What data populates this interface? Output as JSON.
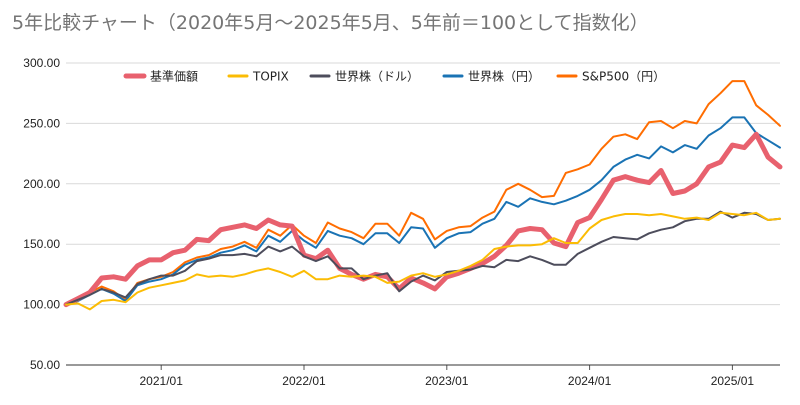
{
  "chart_data": {
    "type": "line",
    "title": "5年比較チャート（2020年5月〜2025年5月、5年前＝100として指数化）",
    "xlabel": "",
    "ylabel": "",
    "ylim": [
      50,
      300
    ],
    "yticks": [
      "50.00",
      "100.00",
      "150.00",
      "200.00",
      "250.00",
      "300.00"
    ],
    "xticks": [
      {
        "label": "2021/01",
        "date": "2021-01"
      },
      {
        "label": "2022/01",
        "date": "2022-01"
      },
      {
        "label": "2023/01",
        "date": "2023-01"
      },
      {
        "label": "2024/01",
        "date": "2024-01"
      },
      {
        "label": "2025/01",
        "date": "2025-01"
      }
    ],
    "grid": true,
    "legend_position": "top",
    "x": [
      "2020-05",
      "2020-06",
      "2020-07",
      "2020-08",
      "2020-09",
      "2020-10",
      "2020-11",
      "2020-12",
      "2021-01",
      "2021-02",
      "2021-03",
      "2021-04",
      "2021-05",
      "2021-06",
      "2021-07",
      "2021-08",
      "2021-09",
      "2021-10",
      "2021-11",
      "2021-12",
      "2022-01",
      "2022-02",
      "2022-03",
      "2022-04",
      "2022-05",
      "2022-06",
      "2022-07",
      "2022-08",
      "2022-09",
      "2022-10",
      "2022-11",
      "2022-12",
      "2023-01",
      "2023-02",
      "2023-03",
      "2023-04",
      "2023-05",
      "2023-06",
      "2023-07",
      "2023-08",
      "2023-09",
      "2023-10",
      "2023-11",
      "2023-12",
      "2024-01",
      "2024-02",
      "2024-03",
      "2024-04",
      "2024-05",
      "2024-06",
      "2024-07",
      "2024-08",
      "2024-09",
      "2024-10",
      "2024-11",
      "2024-12",
      "2025-01",
      "2025-02",
      "2025-03",
      "2025-04",
      "2025-05"
    ],
    "series": [
      {
        "name": "S&P500（円）",
        "color": "#ff6d01",
        "width": 2,
        "values": [
          100,
          104,
          110,
          115,
          111,
          104,
          118,
          121,
          123,
          127,
          135,
          139,
          141,
          146,
          148,
          152,
          147,
          162,
          157,
          166,
          157,
          151,
          168,
          163,
          160,
          155,
          167,
          167,
          157,
          176,
          171,
          154,
          161,
          164,
          165,
          172,
          177,
          195,
          200,
          195,
          189,
          190,
          209,
          212,
          216,
          229,
          239,
          241,
          237,
          251,
          252,
          246,
          252,
          250,
          266,
          275,
          285,
          285,
          265,
          257,
          248
        ]
      },
      {
        "name": "世界株（円）",
        "color": "#1a73b4",
        "width": 2,
        "values": [
          100,
          103,
          108,
          113,
          109,
          103,
          116,
          119,
          121,
          125,
          133,
          137,
          139,
          143,
          145,
          149,
          144,
          157,
          152,
          161,
          153,
          147,
          161,
          157,
          155,
          150,
          159,
          159,
          151,
          164,
          163,
          147,
          155,
          159,
          160,
          167,
          171,
          185,
          181,
          188,
          185,
          183,
          186,
          190,
          195,
          203,
          214,
          220,
          224,
          221,
          231,
          226,
          232,
          229,
          240,
          246,
          255,
          255,
          242,
          236,
          230
        ]
      },
      {
        "name": "基準価額",
        "color": "#e8616e",
        "width": 5,
        "values": [
          100,
          105,
          110,
          122,
          123,
          121,
          132,
          137,
          137,
          143,
          145,
          154,
          153,
          162,
          164,
          166,
          163,
          170,
          166,
          165,
          141,
          138,
          145,
          130,
          125,
          121,
          125,
          123,
          113,
          122,
          118,
          113,
          123,
          126,
          130,
          134,
          140,
          149,
          161,
          163,
          162,
          151,
          148,
          168,
          172,
          187,
          203,
          206,
          203,
          201,
          211,
          192,
          194,
          200,
          214,
          218,
          232,
          230,
          241,
          222,
          214
        ]
      },
      {
        "name": "世界株（ドル）",
        "color": "#4d4d5c",
        "width": 2,
        "values": [
          100,
          104,
          108,
          113,
          110,
          106,
          117,
          121,
          124,
          124,
          128,
          136,
          138,
          141,
          141,
          142,
          140,
          148,
          144,
          148,
          140,
          136,
          140,
          130,
          130,
          121,
          124,
          126,
          111,
          119,
          124,
          120,
          127,
          128,
          129,
          132,
          131,
          137,
          136,
          140,
          137,
          133,
          133,
          142,
          147,
          152,
          156,
          155,
          154,
          159,
          162,
          164,
          169,
          171,
          171,
          177,
          172,
          176,
          175,
          170,
          171
        ]
      },
      {
        "name": "TOPIX",
        "color": "#fbbc04",
        "width": 2,
        "values": [
          100,
          101,
          96,
          103,
          104,
          102,
          110,
          114,
          116,
          118,
          120,
          125,
          123,
          124,
          123,
          125,
          128,
          130,
          127,
          123,
          128,
          121,
          121,
          124,
          123,
          124,
          123,
          118,
          119,
          124,
          126,
          123,
          125,
          128,
          132,
          137,
          146,
          148,
          149,
          149,
          150,
          155,
          151,
          151,
          163,
          170,
          173,
          175,
          175,
          174,
          175,
          173,
          171,
          172,
          170,
          176,
          175,
          174,
          176,
          170,
          171
        ]
      }
    ],
    "legend_order": [
      "基準価額",
      "TOPIX",
      "世界株（ドル）",
      "世界株（円）",
      "S&P500（円）"
    ]
  }
}
